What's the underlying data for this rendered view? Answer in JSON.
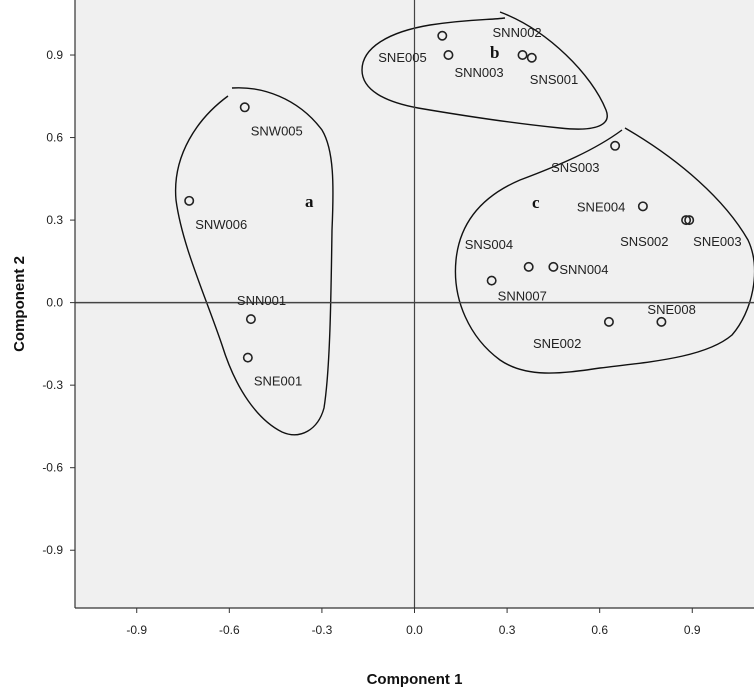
{
  "chart_data": {
    "type": "scatter",
    "xlabel": "Component 1",
    "ylabel": "Component 2",
    "xlim": [
      -1.1,
      1.1
    ],
    "ylim": [
      -1.11,
      1.1
    ],
    "xticks": [
      -0.9,
      -0.6,
      -0.3,
      0.0,
      0.3,
      0.6,
      0.9
    ],
    "yticks": [
      -0.9,
      -0.6,
      -0.3,
      0.0,
      0.3,
      0.6,
      0.9
    ],
    "xtick_labels": [
      "-0.9",
      "-0.6",
      "-0.3",
      "0.0",
      "0.3",
      "0.6",
      "0.9"
    ],
    "ytick_labels": [
      "-0.9",
      "-0.6",
      "-0.3",
      "0.0",
      "0.3",
      "0.6",
      "0.9"
    ],
    "reference_lines": {
      "x": 0,
      "y": 0
    },
    "points": [
      {
        "label": "SNW005",
        "x": -0.55,
        "y": 0.71
      },
      {
        "label": "SNW006",
        "x": -0.73,
        "y": 0.37
      },
      {
        "label": "SNN001",
        "x": -0.53,
        "y": -0.06
      },
      {
        "label": "SNE001",
        "x": -0.54,
        "y": -0.2
      },
      {
        "label": "SNE005",
        "x": 0.09,
        "y": 0.97
      },
      {
        "label": "SNN002",
        "x": 0.35,
        "y": 0.9
      },
      {
        "label": "SNN003",
        "x": 0.11,
        "y": 0.9
      },
      {
        "label": "SNS001",
        "x": 0.38,
        "y": 0.89
      },
      {
        "label": "SNS003",
        "x": 0.65,
        "y": 0.57
      },
      {
        "label": "SNE004",
        "x": 0.74,
        "y": 0.35
      },
      {
        "label": "SNS002",
        "x": 0.88,
        "y": 0.3
      },
      {
        "label": "SNE003",
        "x": 0.89,
        "y": 0.3
      },
      {
        "label": "SNS004",
        "x": 0.37,
        "y": 0.13
      },
      {
        "label": "SNN004",
        "x": 0.45,
        "y": 0.13
      },
      {
        "label": "SNN007",
        "x": 0.25,
        "y": 0.08
      },
      {
        "label": "SNE008",
        "x": 0.8,
        "y": -0.07
      },
      {
        "label": "SNE002",
        "x": 0.63,
        "y": -0.07
      }
    ],
    "clusters": [
      {
        "label": "a",
        "members": [
          "SNW005",
          "SNW006",
          "SNN001",
          "SNE001"
        ]
      },
      {
        "label": "b",
        "members": [
          "SNE005",
          "SNN002",
          "SNN003",
          "SNS001"
        ]
      },
      {
        "label": "c",
        "members": [
          "SNS003",
          "SNE004",
          "SNS002",
          "SNE003",
          "SNS004",
          "SNN004",
          "SNN007",
          "SNE008",
          "SNE002"
        ]
      }
    ]
  },
  "colors": {
    "plot_background": "#f0f0f0",
    "page_background": "#ffffff",
    "axis_color": "#333333",
    "marker_color": "#222222",
    "outline_color": "#111111"
  }
}
